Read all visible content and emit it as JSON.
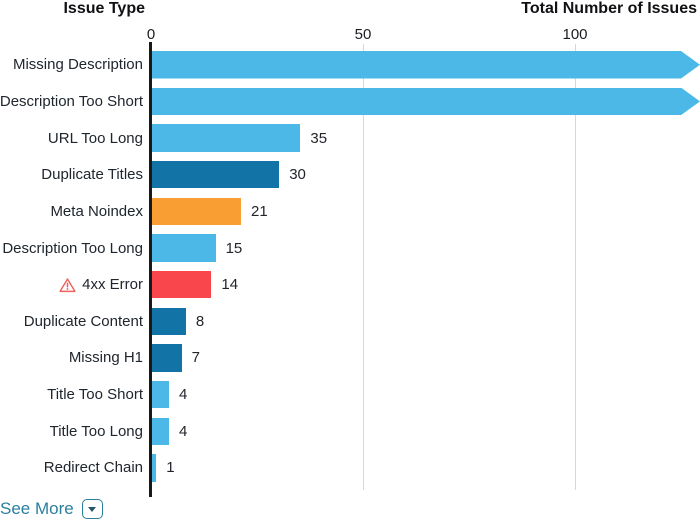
{
  "header": {
    "left_title": "Issue Type",
    "right_title": "Total Number of Issues"
  },
  "chart_data": {
    "type": "bar",
    "orientation": "horizontal",
    "title_left": "Issue Type",
    "title_right": "Total Number of Issues",
    "xlim": [
      0,
      130
    ],
    "x_ticks": [
      0,
      50,
      100
    ],
    "x_tick_labels": [
      "0",
      "50",
      "100"
    ],
    "grid": true,
    "categories": [
      "Missing Description",
      "Description Too Short",
      "URL Too Long",
      "Duplicate Titles",
      "Meta Noindex",
      "Description Too Long",
      "4xx Error",
      "Duplicate Content",
      "Missing H1",
      "Title Too Short",
      "Title Too Long",
      "Redirect Chain"
    ],
    "values": [
      null,
      null,
      35,
      30,
      21,
      15,
      14,
      8,
      7,
      4,
      4,
      1
    ],
    "bars": [
      {
        "label": "Missing Description",
        "value": null,
        "value_label": "",
        "color": "light_blue",
        "overflow": true,
        "warning_icon": false
      },
      {
        "label": "Description Too Short",
        "value": null,
        "value_label": "",
        "color": "light_blue",
        "overflow": true,
        "warning_icon": false
      },
      {
        "label": "URL Too Long",
        "value": 35,
        "value_label": "35",
        "color": "light_blue",
        "overflow": false,
        "warning_icon": false
      },
      {
        "label": "Duplicate Titles",
        "value": 30,
        "value_label": "30",
        "color": "dark_blue",
        "overflow": false,
        "warning_icon": false
      },
      {
        "label": "Meta Noindex",
        "value": 21,
        "value_label": "21",
        "color": "orange",
        "overflow": false,
        "warning_icon": false
      },
      {
        "label": "Description Too Long",
        "value": 15,
        "value_label": "15",
        "color": "light_blue",
        "overflow": false,
        "warning_icon": false
      },
      {
        "label": "4xx Error",
        "value": 14,
        "value_label": "14",
        "color": "red",
        "overflow": false,
        "warning_icon": true
      },
      {
        "label": "Duplicate Content",
        "value": 8,
        "value_label": "8",
        "color": "dark_blue",
        "overflow": false,
        "warning_icon": false
      },
      {
        "label": "Missing H1",
        "value": 7,
        "value_label": "7",
        "color": "dark_blue",
        "overflow": false,
        "warning_icon": false
      },
      {
        "label": "Title Too Short",
        "value": 4,
        "value_label": "4",
        "color": "light_blue",
        "overflow": false,
        "warning_icon": false
      },
      {
        "label": "Title Too Long",
        "value": 4,
        "value_label": "4",
        "color": "light_blue",
        "overflow": false,
        "warning_icon": false
      },
      {
        "label": "Redirect Chain",
        "value": 1,
        "value_label": "1",
        "color": "light_blue",
        "overflow": false,
        "warning_icon": false
      }
    ]
  },
  "colors": {
    "light_blue": "#4bb8e8",
    "dark_blue": "#1173a6",
    "orange": "#f99e32",
    "red": "#f9454c",
    "warning": "#f0615e",
    "axis": "#17191d",
    "grid": "#d8d8d8",
    "link": "#2a7f9d"
  },
  "footer": {
    "see_more_label": "See More",
    "dropdown_icon": "caret-down-icon"
  }
}
